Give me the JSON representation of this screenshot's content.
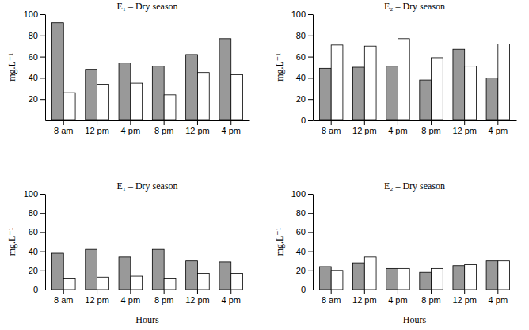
{
  "chart_data": [
    {
      "type": "bar",
      "title": "E₁ – Dry season",
      "y_label": "mg.L⁻¹",
      "categories": [
        "8 am",
        "12 pm",
        "4 pm",
        "8 pm",
        "12 pm",
        "4 pm"
      ],
      "series": [
        {
          "color": "#999999",
          "values": [
            92,
            48,
            54,
            51,
            62,
            77
          ]
        },
        {
          "color": "#ffffff",
          "values": [
            26,
            34,
            35,
            24,
            45,
            43
          ]
        }
      ],
      "ylim": [
        0,
        100
      ],
      "yticks": [
        20,
        40,
        60,
        80,
        100
      ]
    },
    {
      "type": "bar",
      "title": "E₂ – Dry season",
      "y_label": "mg.L⁻¹",
      "categories": [
        "8 am",
        "12 pm",
        "4 pm",
        "8 pm",
        "12 pm",
        "4 pm"
      ],
      "series": [
        {
          "color": "#999999",
          "values": [
            49,
            50,
            51,
            38,
            67,
            40
          ]
        },
        {
          "color": "#ffffff",
          "values": [
            71,
            70,
            77,
            59,
            51,
            72
          ]
        }
      ],
      "ylim": [
        0,
        100
      ],
      "yticks": [
        0,
        20,
        40,
        60,
        80,
        100
      ]
    },
    {
      "type": "bar",
      "title": "E₁ – Dry season",
      "y_label": "mg.L⁻¹",
      "x_label": "Hours",
      "categories": [
        "8 am",
        "12 pm",
        "4 pm",
        "8 pm",
        "12 pm",
        "4 pm"
      ],
      "series": [
        {
          "color": "#999999",
          "values": [
            38,
            42,
            34,
            42,
            30,
            29
          ]
        },
        {
          "color": "#ffffff",
          "values": [
            12,
            13,
            14,
            12,
            17,
            17
          ]
        }
      ],
      "ylim": [
        0,
        100
      ],
      "yticks": [
        0,
        20,
        40,
        60,
        80,
        100
      ]
    },
    {
      "type": "bar",
      "title": "E₂ – Dry season",
      "y_label": "mg.L⁻¹",
      "x_label": "Hours",
      "categories": [
        "8 am",
        "12 pm",
        "4 pm",
        "8 pm",
        "12 pm",
        "4 pm"
      ],
      "series": [
        {
          "color": "#999999",
          "values": [
            24,
            28,
            22,
            18,
            25,
            30
          ]
        },
        {
          "color": "#ffffff",
          "values": [
            20,
            34,
            22,
            22,
            26,
            30
          ]
        }
      ],
      "ylim": [
        0,
        100
      ],
      "yticks": [
        0,
        20,
        40,
        60,
        80,
        100
      ]
    }
  ]
}
